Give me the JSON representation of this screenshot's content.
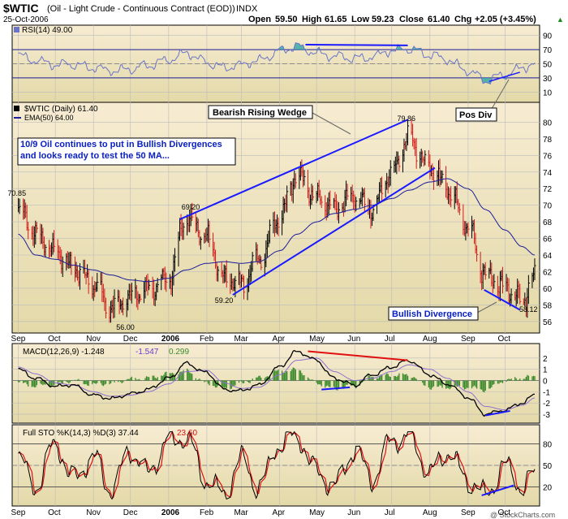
{
  "header": {
    "symbol": "$WTIC",
    "description": "(Oil - Light Crude - Continuous Contract (EOD))",
    "exchange": "INDX",
    "date": "25-Oct-2006",
    "open_label": "Open",
    "open": "59.50",
    "high_label": "High",
    "high": "61.65",
    "low_label": "Low",
    "low": "59.23",
    "close_label": "Close",
    "close": "61.40",
    "chg_label": "Chg",
    "chg": "+2.05 (+3.45%)",
    "chg_marker": "▲",
    "watermark": "@ StockCharts.com"
  },
  "colors": {
    "panel_bg_top": "#f7ecd2",
    "panel_bg_bottom": "#e3d9a8",
    "price_bar": "#000000",
    "price_bar_down": "#d11b1b",
    "ema": "#1c1c9a",
    "trendline": "#1a1aff",
    "rsi": "#6a74c8",
    "rsi_fill": "#2ea6a6",
    "macd": "#000000",
    "signal": "#8e6fcf",
    "hist": "#3a8a2a",
    "sto_k": "#000000",
    "sto_d": "#e01010",
    "red_line": "#e01010",
    "text_blue": "#0a20c0"
  },
  "chart_data": [
    {
      "type": "line",
      "name": "rsi",
      "title": "RSI(14) 49.00",
      "ylim": [
        0,
        100
      ],
      "y_ticks": [
        10,
        30,
        50,
        70,
        90
      ],
      "x": [
        "2005-09-01",
        "2005-09-15",
        "2005-10-01",
        "2005-10-15",
        "2005-11-01",
        "2005-11-15",
        "2005-12-01",
        "2005-12-15",
        "2006-01-01",
        "2006-01-15",
        "2006-02-01",
        "2006-02-15",
        "2006-03-01",
        "2006-03-15",
        "2006-04-01",
        "2006-04-15",
        "2006-05-01",
        "2006-05-15",
        "2006-06-01",
        "2006-06-15",
        "2006-07-01",
        "2006-07-15",
        "2006-08-01",
        "2006-08-15",
        "2006-09-01",
        "2006-09-15",
        "2006-10-01",
        "2006-10-15",
        "2006-10-25"
      ],
      "values": [
        62,
        55,
        48,
        50,
        44,
        40,
        43,
        47,
        56,
        65,
        52,
        45,
        48,
        55,
        68,
        74,
        66,
        60,
        58,
        60,
        68,
        72,
        62,
        56,
        40,
        26,
        35,
        44,
        49
      ],
      "annotations": [
        "Pos Div"
      ]
    },
    {
      "type": "bar",
      "name": "price",
      "title": "$WTIC (Daily) 61.40",
      "legend": [
        "$WTIC (Daily) 61.40",
        "EMA(50) 64.00"
      ],
      "ylim": [
        55,
        82
      ],
      "y_ticks": [
        56,
        58,
        60,
        62,
        64,
        66,
        68,
        70,
        72,
        74,
        76,
        78,
        80
      ],
      "x_labels": [
        "Sep",
        "Oct",
        "Nov",
        "Dec",
        "2006",
        "Feb",
        "Mar",
        "Apr",
        "May",
        "Jun",
        "Jul",
        "Aug",
        "Sep",
        "Oct"
      ],
      "close": {
        "x": [
          "2005-09-01",
          "2005-09-15",
          "2005-10-01",
          "2005-10-15",
          "2005-11-01",
          "2005-11-15",
          "2005-12-01",
          "2005-12-15",
          "2006-01-01",
          "2006-01-15",
          "2006-02-01",
          "2006-02-15",
          "2006-03-01",
          "2006-03-15",
          "2006-04-01",
          "2006-04-15",
          "2006-05-01",
          "2006-05-15",
          "2006-06-01",
          "2006-06-15",
          "2006-07-01",
          "2006-07-15",
          "2006-08-01",
          "2006-08-15",
          "2006-09-01",
          "2006-09-15",
          "2006-10-01",
          "2006-10-15",
          "2006-10-25"
        ],
        "values": [
          69.5,
          66.5,
          64.5,
          62.5,
          60.5,
          57.5,
          59.0,
          60.0,
          61.0,
          68.5,
          66.0,
          61.0,
          60.5,
          63.5,
          68.5,
          73.5,
          71.0,
          69.5,
          71.0,
          69.5,
          74.0,
          78.0,
          74.5,
          72.0,
          67.5,
          61.5,
          60.0,
          58.5,
          61.4
        ]
      },
      "ema50": {
        "x": [
          "2005-09-01",
          "2005-09-15",
          "2005-10-01",
          "2005-10-15",
          "2005-11-01",
          "2005-11-15",
          "2005-12-01",
          "2005-12-15",
          "2006-01-01",
          "2006-01-15",
          "2006-02-01",
          "2006-02-15",
          "2006-03-01",
          "2006-03-15",
          "2006-04-01",
          "2006-04-15",
          "2006-05-01",
          "2006-05-15",
          "2006-06-01",
          "2006-06-15",
          "2006-07-01",
          "2006-07-15",
          "2006-08-01",
          "2006-08-15",
          "2006-09-01",
          "2006-09-15",
          "2006-10-01",
          "2006-10-15",
          "2006-10-25"
        ],
        "values": [
          66.5,
          64.0,
          63.5,
          62.8,
          62.2,
          61.6,
          61.0,
          60.8,
          61.2,
          62.2,
          63.0,
          63.2,
          63.0,
          63.2,
          64.5,
          66.5,
          68.0,
          69.0,
          69.5,
          70.0,
          70.8,
          71.8,
          72.8,
          73.2,
          72.0,
          69.5,
          67.0,
          65.0,
          64.0
        ]
      },
      "price_labels": [
        {
          "date": "2005-09-01",
          "value": 70.85,
          "text": "70.85"
        },
        {
          "date": "2005-11-28",
          "value": 56.0,
          "text": "56.00"
        },
        {
          "date": "2006-01-20",
          "value": 69.2,
          "text": "69.20"
        },
        {
          "date": "2006-02-16",
          "value": 59.2,
          "text": "59.20"
        },
        {
          "date": "2006-07-14",
          "value": 79.86,
          "text": "79.86"
        },
        {
          "date": "2006-10-25",
          "value": 58.12,
          "text": "58.12"
        }
      ],
      "trendlines": [
        {
          "from": [
            "2006-01-10",
            68.3
          ],
          "to": [
            "2006-07-14",
            80.3
          ]
        },
        {
          "from": [
            "2006-02-22",
            59.2
          ],
          "to": [
            "2006-08-05",
            74.5
          ]
        },
        {
          "from": [
            "2006-09-14",
            59.8
          ],
          "to": [
            "2006-10-13",
            57.4
          ]
        }
      ],
      "annotations": [
        "Bearish Rising Wedge",
        "10/9  Oil continues to put in Bullish Divergences and looks ready to test the 50 MA...",
        "Bullish Divergence"
      ]
    },
    {
      "type": "line",
      "name": "macd",
      "title": "MACD(12,26,9) -1.248, -1.547, 0.299",
      "legend": [
        "MACD(12,26,9) -1.248",
        "-1.547",
        "0.299"
      ],
      "ylim": [
        -3.5,
        3
      ],
      "y_ticks": [
        -3,
        -2,
        -1,
        0,
        1,
        2
      ],
      "x": [
        "2005-09-01",
        "2005-09-15",
        "2005-10-01",
        "2005-10-15",
        "2005-11-01",
        "2005-11-15",
        "2005-12-01",
        "2005-12-15",
        "2006-01-01",
        "2006-01-15",
        "2006-02-01",
        "2006-02-15",
        "2006-03-01",
        "2006-03-15",
        "2006-04-01",
        "2006-04-15",
        "2006-05-01",
        "2006-05-15",
        "2006-06-01",
        "2006-06-15",
        "2006-07-01",
        "2006-07-15",
        "2006-08-01",
        "2006-08-15",
        "2006-09-01",
        "2006-09-15",
        "2006-10-01",
        "2006-10-15",
        "2006-10-25"
      ],
      "macd": [
        1.0,
        0.2,
        -0.5,
        -0.4,
        -1.3,
        -1.6,
        -1.2,
        -0.8,
        0.2,
        1.5,
        0.7,
        -0.8,
        -0.9,
        -0.4,
        1.2,
        2.6,
        1.8,
        0.2,
        -0.4,
        0.5,
        1.2,
        1.8,
        0.5,
        -0.3,
        -1.5,
        -3.0,
        -2.6,
        -2.0,
        -1.25
      ],
      "signal": [
        1.2,
        0.6,
        -0.2,
        -0.4,
        -1.0,
        -1.4,
        -1.3,
        -1.0,
        -0.3,
        0.8,
        0.9,
        -0.2,
        -0.7,
        -0.6,
        0.5,
        1.8,
        2.0,
        0.8,
        0.0,
        0.2,
        0.8,
        1.4,
        1.0,
        0.2,
        -1.0,
        -2.3,
        -2.6,
        -2.2,
        -1.55
      ],
      "divergence_lines": [
        {
          "from": [
            "2006-04-24",
            2.6
          ],
          "to": [
            "2006-07-14",
            1.8
          ],
          "color": "red"
        },
        {
          "from": [
            "2006-05-05",
            -0.8
          ],
          "to": [
            "2006-05-28",
            -0.6
          ],
          "color": "blue"
        },
        {
          "from": [
            "2006-09-15",
            -3.1
          ],
          "to": [
            "2006-10-05",
            -2.7
          ],
          "color": "blue"
        }
      ]
    },
    {
      "type": "line",
      "name": "stochastic",
      "title": "Full STO %K(14,3) %D(3) 37.44, 23.60",
      "legend": [
        "Full STO %K(14,3) %D(3) 37.44",
        "23.60"
      ],
      "ylim": [
        0,
        100
      ],
      "y_ticks": [
        20,
        50,
        80
      ],
      "x": [
        "2005-09-01",
        "2005-09-15",
        "2005-10-01",
        "2005-10-15",
        "2005-11-01",
        "2005-11-15",
        "2005-12-01",
        "2005-12-15",
        "2006-01-01",
        "2006-01-15",
        "2006-02-01",
        "2006-02-15",
        "2006-03-01",
        "2006-03-15",
        "2006-04-01",
        "2006-04-15",
        "2006-05-01",
        "2006-05-15",
        "2006-06-01",
        "2006-06-15",
        "2006-07-01",
        "2006-07-15",
        "2006-08-01",
        "2006-08-15",
        "2006-09-01",
        "2006-09-15",
        "2006-10-01",
        "2006-10-15",
        "2006-10-25"
      ],
      "k": [
        60,
        20,
        80,
        30,
        60,
        15,
        70,
        40,
        85,
        90,
        30,
        10,
        60,
        20,
        80,
        90,
        40,
        20,
        70,
        30,
        85,
        90,
        40,
        70,
        30,
        10,
        50,
        20,
        37.44
      ],
      "d": [
        65,
        30,
        70,
        40,
        55,
        20,
        60,
        45,
        75,
        88,
        40,
        15,
        50,
        30,
        70,
        88,
        50,
        25,
        60,
        35,
        75,
        88,
        50,
        60,
        35,
        15,
        40,
        25,
        23.6
      ]
    }
  ]
}
